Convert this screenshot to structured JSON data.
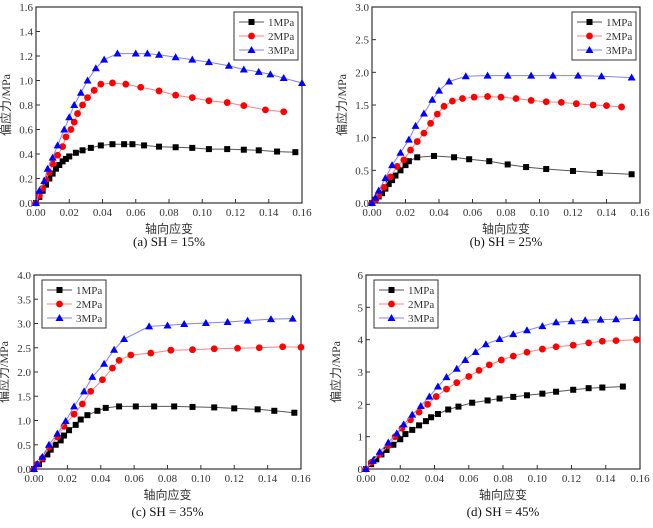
{
  "chart_data": [
    {
      "id": "a",
      "type": "line",
      "title": "(a) SH = 15%",
      "xlabel": "轴向应变",
      "ylabel": "偏应力/MPa",
      "xlim": [
        0,
        0.16
      ],
      "ylim": [
        0,
        1.6
      ],
      "xticks": [
        "0.00",
        "0.02",
        "0.04",
        "0.06",
        "0.08",
        "0.10",
        "0.12",
        "0.14",
        "0.16"
      ],
      "yticks": [
        "0.0",
        "0.2",
        "0.4",
        "0.6",
        "0.8",
        "1.0",
        "1.2",
        "1.4",
        "1.6"
      ],
      "legend_position": "top-right",
      "grid": false,
      "series": [
        {
          "name": "1MPa",
          "marker": "square",
          "color": "#000000",
          "x": [
            0,
            0.002,
            0.004,
            0.006,
            0.008,
            0.01,
            0.012,
            0.014,
            0.016,
            0.018,
            0.02,
            0.024,
            0.028,
            0.033,
            0.039,
            0.046,
            0.053,
            0.058,
            0.065,
            0.074,
            0.084,
            0.094,
            0.104,
            0.115,
            0.125,
            0.134,
            0.145,
            0.156
          ],
          "y": [
            0,
            0.05,
            0.1,
            0.15,
            0.2,
            0.24,
            0.28,
            0.31,
            0.34,
            0.36,
            0.38,
            0.41,
            0.43,
            0.45,
            0.47,
            0.48,
            0.48,
            0.48,
            0.47,
            0.46,
            0.455,
            0.45,
            0.44,
            0.44,
            0.435,
            0.43,
            0.42,
            0.415
          ]
        },
        {
          "name": "2MPa",
          "marker": "circle",
          "color": "#ff0000",
          "x": [
            0,
            0.002,
            0.004,
            0.006,
            0.008,
            0.01,
            0.013,
            0.016,
            0.018,
            0.021,
            0.023,
            0.025,
            0.028,
            0.031,
            0.035,
            0.039,
            0.046,
            0.054,
            0.063,
            0.074,
            0.084,
            0.094,
            0.104,
            0.115,
            0.125,
            0.138,
            0.149
          ],
          "y": [
            0,
            0.06,
            0.12,
            0.19,
            0.25,
            0.32,
            0.39,
            0.46,
            0.54,
            0.6,
            0.66,
            0.73,
            0.8,
            0.86,
            0.92,
            0.97,
            0.98,
            0.97,
            0.945,
            0.915,
            0.88,
            0.86,
            0.835,
            0.82,
            0.795,
            0.76,
            0.745
          ]
        },
        {
          "name": "3MPa",
          "marker": "triangle",
          "color": "#0000ff",
          "x": [
            0,
            0.002,
            0.005,
            0.007,
            0.01,
            0.013,
            0.017,
            0.02,
            0.023,
            0.027,
            0.031,
            0.036,
            0.041,
            0.049,
            0.06,
            0.067,
            0.074,
            0.084,
            0.094,
            0.104,
            0.116,
            0.125,
            0.134,
            0.141,
            0.149,
            0.16
          ],
          "y": [
            0,
            0.1,
            0.18,
            0.28,
            0.37,
            0.47,
            0.6,
            0.7,
            0.8,
            0.9,
            1.0,
            1.1,
            1.17,
            1.22,
            1.22,
            1.22,
            1.21,
            1.19,
            1.17,
            1.15,
            1.12,
            1.09,
            1.07,
            1.05,
            1.02,
            0.98
          ]
        }
      ]
    },
    {
      "id": "b",
      "type": "line",
      "title": "(b) SH = 25%",
      "xlabel": "轴向应变",
      "ylabel": "偏应力/MPa",
      "xlim": [
        0,
        0.16
      ],
      "ylim": [
        0,
        3.0
      ],
      "xticks": [
        "0.00",
        "0.02",
        "0.04",
        "0.06",
        "0.08",
        "0.10",
        "0.12",
        "0.14",
        "0.16"
      ],
      "yticks": [
        "0.0",
        "0.5",
        "1.0",
        "1.5",
        "2.0",
        "2.5",
        "3.0"
      ],
      "legend_position": "top-right",
      "grid": false,
      "series": [
        {
          "name": "1MPa",
          "marker": "square",
          "color": "#000000",
          "x": [
            0,
            0.002,
            0.004,
            0.006,
            0.008,
            0.01,
            0.012,
            0.014,
            0.017,
            0.02,
            0.022,
            0.027,
            0.037,
            0.049,
            0.058,
            0.07,
            0.081,
            0.092,
            0.104,
            0.12,
            0.136,
            0.155
          ],
          "y": [
            0,
            0.05,
            0.1,
            0.15,
            0.22,
            0.29,
            0.35,
            0.42,
            0.5,
            0.58,
            0.64,
            0.7,
            0.72,
            0.7,
            0.67,
            0.64,
            0.59,
            0.55,
            0.52,
            0.49,
            0.46,
            0.44
          ]
        },
        {
          "name": "2MPa",
          "marker": "circle",
          "color": "#ff0000",
          "x": [
            0,
            0.002,
            0.004,
            0.007,
            0.011,
            0.015,
            0.019,
            0.023,
            0.027,
            0.031,
            0.035,
            0.039,
            0.043,
            0.048,
            0.054,
            0.061,
            0.069,
            0.077,
            0.086,
            0.095,
            0.104,
            0.113,
            0.122,
            0.132,
            0.14,
            0.149
          ],
          "y": [
            0,
            0.05,
            0.12,
            0.24,
            0.4,
            0.56,
            0.66,
            0.81,
            0.94,
            1.07,
            1.22,
            1.36,
            1.48,
            1.56,
            1.6,
            1.62,
            1.63,
            1.62,
            1.6,
            1.57,
            1.55,
            1.54,
            1.52,
            1.5,
            1.49,
            1.47
          ]
        },
        {
          "name": "3MPa",
          "marker": "triangle",
          "color": "#0000ff",
          "x": [
            0,
            0.002,
            0.004,
            0.008,
            0.012,
            0.017,
            0.022,
            0.026,
            0.031,
            0.036,
            0.04,
            0.046,
            0.056,
            0.069,
            0.081,
            0.095,
            0.108,
            0.123,
            0.137,
            0.155
          ],
          "y": [
            0,
            0.08,
            0.19,
            0.38,
            0.58,
            0.77,
            0.97,
            1.18,
            1.37,
            1.58,
            1.72,
            1.86,
            1.94,
            1.95,
            1.95,
            1.95,
            1.95,
            1.95,
            1.94,
            1.92
          ]
        }
      ]
    },
    {
      "id": "c",
      "type": "line",
      "title": "(c) SH = 35%",
      "xlabel": "轴向应变",
      "ylabel": "偏应力/MPa",
      "xlim": [
        0,
        0.16
      ],
      "ylim": [
        0,
        4.0
      ],
      "xticks": [
        "0.00",
        "0.02",
        "0.04",
        "0.06",
        "0.08",
        "0.10",
        "0.12",
        "0.14",
        "0.16"
      ],
      "yticks": [
        "0.0",
        "0.5",
        "1.0",
        "1.5",
        "2.0",
        "2.5",
        "3.0",
        "3.5",
        "4.0"
      ],
      "legend_position": "top-left",
      "grid": false,
      "series": [
        {
          "name": "1MPa",
          "marker": "square",
          "color": "#000000",
          "x": [
            0,
            0.003,
            0.005,
            0.008,
            0.01,
            0.013,
            0.016,
            0.018,
            0.021,
            0.025,
            0.028,
            0.032,
            0.038,
            0.043,
            0.051,
            0.061,
            0.072,
            0.084,
            0.095,
            0.108,
            0.12,
            0.134,
            0.144,
            0.156
          ],
          "y": [
            0,
            0.1,
            0.2,
            0.3,
            0.4,
            0.5,
            0.59,
            0.69,
            0.8,
            0.91,
            1.02,
            1.11,
            1.2,
            1.26,
            1.29,
            1.29,
            1.29,
            1.29,
            1.28,
            1.27,
            1.25,
            1.23,
            1.2,
            1.16
          ]
        },
        {
          "name": "2MPa",
          "marker": "circle",
          "color": "#ff0000",
          "x": [
            0,
            0.002,
            0.005,
            0.009,
            0.014,
            0.018,
            0.024,
            0.029,
            0.034,
            0.041,
            0.047,
            0.051,
            0.058,
            0.07,
            0.082,
            0.095,
            0.108,
            0.122,
            0.135,
            0.149,
            0.16
          ],
          "y": [
            0,
            0.1,
            0.22,
            0.45,
            0.66,
            0.88,
            1.13,
            1.34,
            1.6,
            1.84,
            2.08,
            2.24,
            2.35,
            2.39,
            2.45,
            2.46,
            2.48,
            2.49,
            2.5,
            2.52,
            2.51
          ]
        },
        {
          "name": "3MPa",
          "marker": "triangle",
          "color": "#0000ff",
          "x": [
            0,
            0.002,
            0.005,
            0.009,
            0.014,
            0.019,
            0.024,
            0.03,
            0.035,
            0.042,
            0.048,
            0.054,
            0.069,
            0.08,
            0.09,
            0.103,
            0.116,
            0.128,
            0.142,
            0.155
          ],
          "y": [
            0,
            0.1,
            0.25,
            0.5,
            0.73,
            0.99,
            1.29,
            1.6,
            1.9,
            2.17,
            2.46,
            2.68,
            2.94,
            2.96,
            2.99,
            3.01,
            3.03,
            3.06,
            3.09,
            3.1
          ]
        }
      ]
    },
    {
      "id": "d",
      "type": "line",
      "title": "(d) SH = 45%",
      "xlabel": "轴向应变",
      "ylabel": "偏应力/MPa",
      "xlim": [
        0,
        0.16
      ],
      "ylim": [
        0,
        6
      ],
      "xticks": [
        "0.00",
        "0.02",
        "0.04",
        "0.06",
        "0.08",
        "0.10",
        "0.12",
        "0.14",
        "0.16"
      ],
      "yticks": [
        "0",
        "1",
        "2",
        "3",
        "4",
        "5",
        "6"
      ],
      "legend_position": "top-left",
      "grid": false,
      "series": [
        {
          "name": "1MPa",
          "marker": "square",
          "color": "#000000",
          "x": [
            0,
            0.003,
            0.006,
            0.009,
            0.012,
            0.016,
            0.02,
            0.023,
            0.027,
            0.031,
            0.035,
            0.038,
            0.042,
            0.048,
            0.054,
            0.062,
            0.071,
            0.078,
            0.086,
            0.094,
            0.103,
            0.111,
            0.121,
            0.13,
            0.138,
            0.15
          ],
          "y": [
            0,
            0.15,
            0.3,
            0.45,
            0.59,
            0.75,
            0.92,
            1.08,
            1.21,
            1.35,
            1.48,
            1.6,
            1.7,
            1.84,
            1.93,
            2.05,
            2.12,
            2.18,
            2.23,
            2.28,
            2.33,
            2.39,
            2.45,
            2.5,
            2.52,
            2.55
          ]
        },
        {
          "name": "2MPa",
          "marker": "circle",
          "color": "#ff0000",
          "x": [
            0,
            0.003,
            0.008,
            0.013,
            0.017,
            0.021,
            0.026,
            0.031,
            0.036,
            0.041,
            0.047,
            0.053,
            0.06,
            0.066,
            0.072,
            0.079,
            0.086,
            0.094,
            0.103,
            0.111,
            0.121,
            0.13,
            0.138,
            0.146,
            0.158
          ],
          "y": [
            0,
            0.2,
            0.45,
            0.72,
            1.0,
            1.26,
            1.52,
            1.76,
            2.0,
            2.24,
            2.47,
            2.67,
            2.86,
            3.05,
            3.22,
            3.37,
            3.49,
            3.61,
            3.71,
            3.78,
            3.83,
            3.9,
            3.95,
            3.97,
            4.0
          ]
        },
        {
          "name": "3MPa",
          "marker": "triangle",
          "color": "#0000ff",
          "x": [
            0,
            0.004,
            0.008,
            0.013,
            0.018,
            0.022,
            0.027,
            0.032,
            0.037,
            0.042,
            0.047,
            0.053,
            0.058,
            0.064,
            0.07,
            0.078,
            0.086,
            0.094,
            0.103,
            0.111,
            0.12,
            0.128,
            0.137,
            0.146,
            0.158
          ],
          "y": [
            0,
            0.25,
            0.53,
            0.82,
            1.1,
            1.38,
            1.68,
            1.95,
            2.24,
            2.55,
            2.84,
            3.1,
            3.37,
            3.62,
            3.86,
            4.02,
            4.17,
            4.29,
            4.42,
            4.54,
            4.57,
            4.6,
            4.62,
            4.63,
            4.67
          ]
        }
      ]
    }
  ]
}
